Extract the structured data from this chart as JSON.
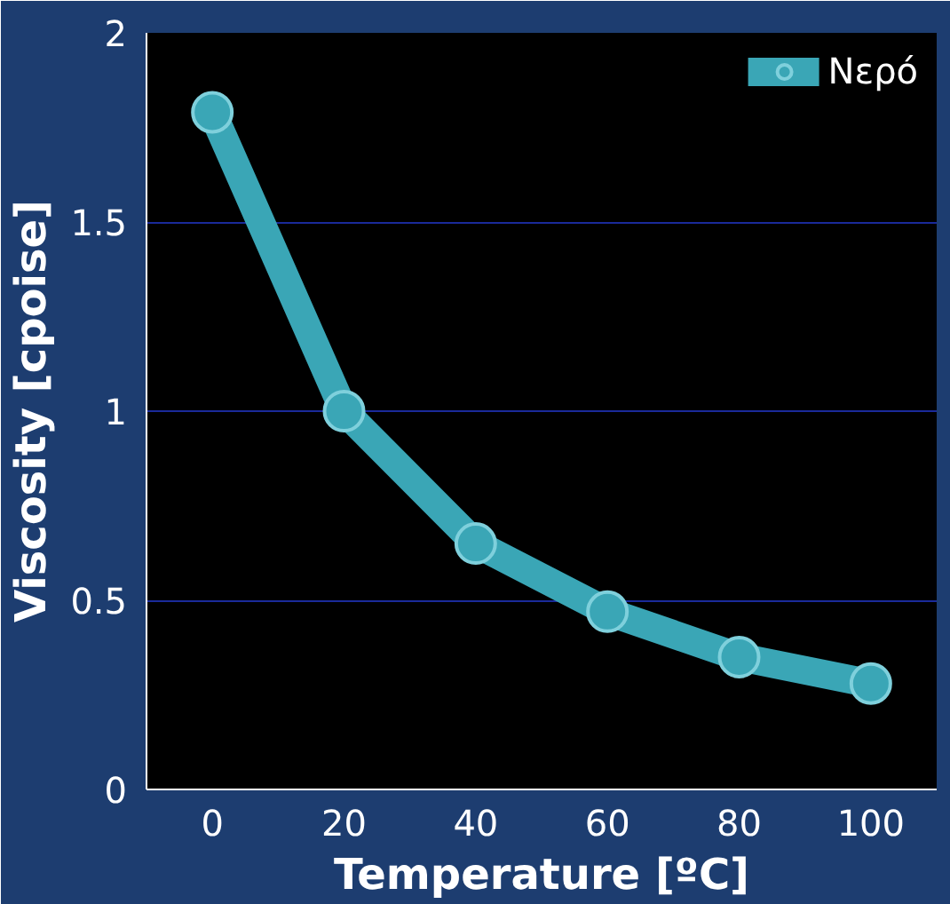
{
  "chart_data": {
    "type": "line",
    "xlabel": "Temperature [ºC]",
    "ylabel": "Viscosity [cpoise]",
    "x": [
      0,
      20,
      40,
      60,
      80,
      100
    ],
    "series": [
      {
        "name": "Νερό",
        "color": "#3aa6b6",
        "values": [
          1.79,
          1.0,
          0.65,
          0.47,
          0.35,
          0.28
        ]
      }
    ],
    "xlim": [
      -10,
      110
    ],
    "xticks": [
      0,
      20,
      40,
      60,
      80,
      100
    ],
    "ylim": [
      0,
      2
    ],
    "yticks": [
      0,
      0.5,
      1,
      1.5,
      2
    ],
    "grid": "y",
    "legend": "top right",
    "marker": "circle",
    "line_style": "solid"
  }
}
